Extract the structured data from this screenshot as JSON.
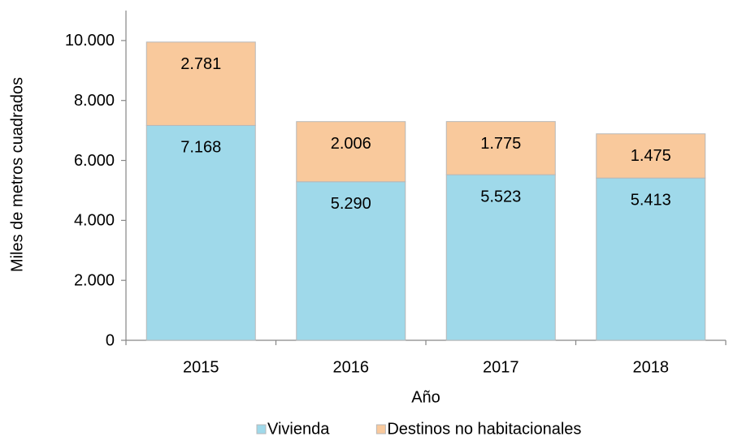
{
  "chart_data": {
    "type": "stacked_bar",
    "x_label": "Año",
    "y_label": "Miles de metros cuadrados",
    "categories": [
      "2015",
      "2016",
      "2017",
      "2018"
    ],
    "series": [
      {
        "name": "Vivienda",
        "color": "#9fd9ea",
        "values": [
          7168,
          5290,
          5523,
          5413
        ],
        "value_labels": [
          "7.168",
          "5.290",
          "5.523",
          "5.413"
        ]
      },
      {
        "name": "Destinos no habitacionales",
        "color": "#f9c99c",
        "values": [
          2781,
          2006,
          1775,
          1475
        ],
        "value_labels": [
          "2.781",
          "2.006",
          "1.775",
          "1.475"
        ]
      }
    ],
    "ylim": [
      0,
      11000
    ],
    "yticks": [
      0,
      {
        "value": 2000,
        "label": "2.000"
      },
      {
        "value": 4000,
        "label": "4.000"
      },
      {
        "value": 6000,
        "label": "6.000"
      },
      {
        "value": 8000,
        "label": "8.000"
      },
      {
        "value": 10000,
        "label": "10.000"
      }
    ],
    "grid": false,
    "legend": "bottom"
  }
}
